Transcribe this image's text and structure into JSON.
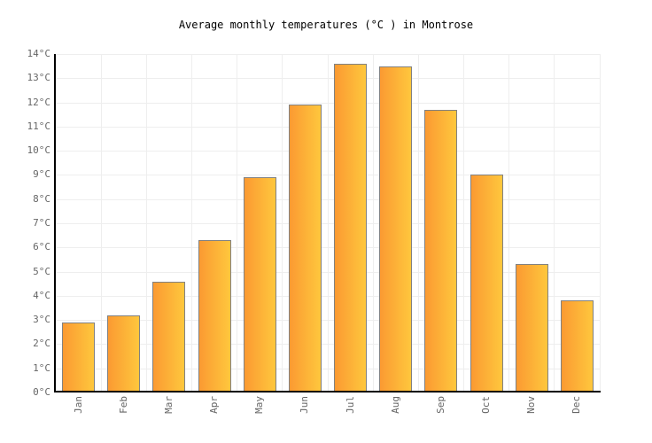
{
  "header": {
    "title": "Average monthly temperatures (°C ) in Montrose"
  },
  "chart_data": {
    "type": "bar",
    "title": "Average monthly temperatures (°C ) in Montrose",
    "categories": [
      "Jan",
      "Feb",
      "Mar",
      "Apr",
      "May",
      "Jun",
      "Jul",
      "Aug",
      "Sep",
      "Oct",
      "Nov",
      "Dec"
    ],
    "values": [
      2.9,
      3.2,
      4.6,
      6.3,
      8.9,
      11.9,
      13.6,
      13.5,
      11.7,
      9.0,
      5.3,
      3.8
    ],
    "xlabel": "",
    "ylabel": "",
    "ylim": [
      0,
      14
    ],
    "ytick_step": 1,
    "ytick_labels": [
      "0°C",
      "1°C",
      "2°C",
      "3°C",
      "4°C",
      "5°C",
      "6°C",
      "7°C",
      "8°C",
      "9°C",
      "10°C",
      "11°C",
      "12°C",
      "13°C",
      "14°C"
    ],
    "grid": true,
    "legend": "none",
    "colors": {
      "bar_gradient_left": "#FB9A32",
      "bar_gradient_right": "#FEC73D",
      "bar_border": "#818181",
      "gridline": "#EEEEEE",
      "axis": "#000000",
      "tick_label": "#666666",
      "title": "#000000",
      "background": "#FFFFFF"
    }
  }
}
